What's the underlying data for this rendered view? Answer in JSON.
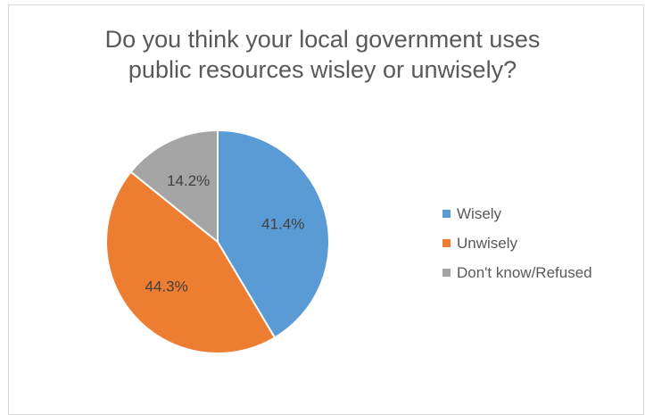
{
  "chart_data": {
    "type": "pie",
    "title_lines": [
      "Do you think your local government uses",
      "public resources wisley or unwisely?"
    ],
    "slices": [
      {
        "label": "Wisely",
        "value": 41.4,
        "value_label": "41.4%",
        "color": "#5b9bd5"
      },
      {
        "label": "Unwisely",
        "value": 44.3,
        "value_label": "44.3%",
        "color": "#ed7d31"
      },
      {
        "label": "Don't know/Refused",
        "value": 14.2,
        "value_label": "14.2%",
        "color": "#a5a5a5"
      }
    ],
    "legend_position": "right",
    "start_angle": "top",
    "direction": "clockwise"
  }
}
